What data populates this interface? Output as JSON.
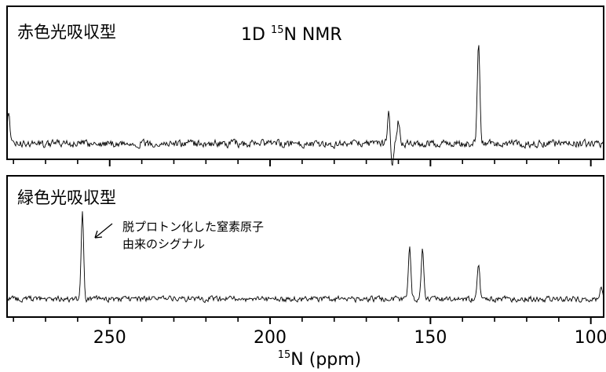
{
  "chart_data": {
    "type": "line",
    "title": {
      "prefix": "1D ",
      "sup": "15",
      "suffix": "N NMR"
    },
    "xlabel": {
      "sup": "15",
      "text": "N (ppm)"
    },
    "xlim": [
      282,
      96
    ],
    "x_reversed": true,
    "xticks_major": [
      250,
      200,
      150,
      100
    ],
    "xticks_minor_step": 10,
    "grid": false,
    "panels": [
      {
        "label": "赤色光吸収型",
        "series": [
          {
            "type": "baseline-noise",
            "range": [
              282,
              96
            ],
            "peaks": [
              {
                "x": 135.0,
                "height": 0.95
              },
              {
                "x": 163.0,
                "height": 0.33
              },
              {
                "x": 160.0,
                "height": 0.22
              },
              {
                "x": 162.0,
                "height": -0.2
              },
              {
                "x": 281.5,
                "height": 0.3
              }
            ]
          }
        ]
      },
      {
        "label": "緑色光吸収型",
        "annotation": {
          "lines": [
            "脱プロトン化した窒素原子",
            "由来のシグナル"
          ],
          "points_to_x": 258.5
        },
        "series": [
          {
            "type": "baseline-noise",
            "range": [
              282,
              96
            ],
            "peaks": [
              {
                "x": 258.5,
                "height": 1.0
              },
              {
                "x": 156.5,
                "height": 0.58
              },
              {
                "x": 152.5,
                "height": 0.58
              },
              {
                "x": 135.0,
                "height": 0.4
              },
              {
                "x": 96.8,
                "height": 0.17
              }
            ]
          }
        ]
      }
    ]
  }
}
